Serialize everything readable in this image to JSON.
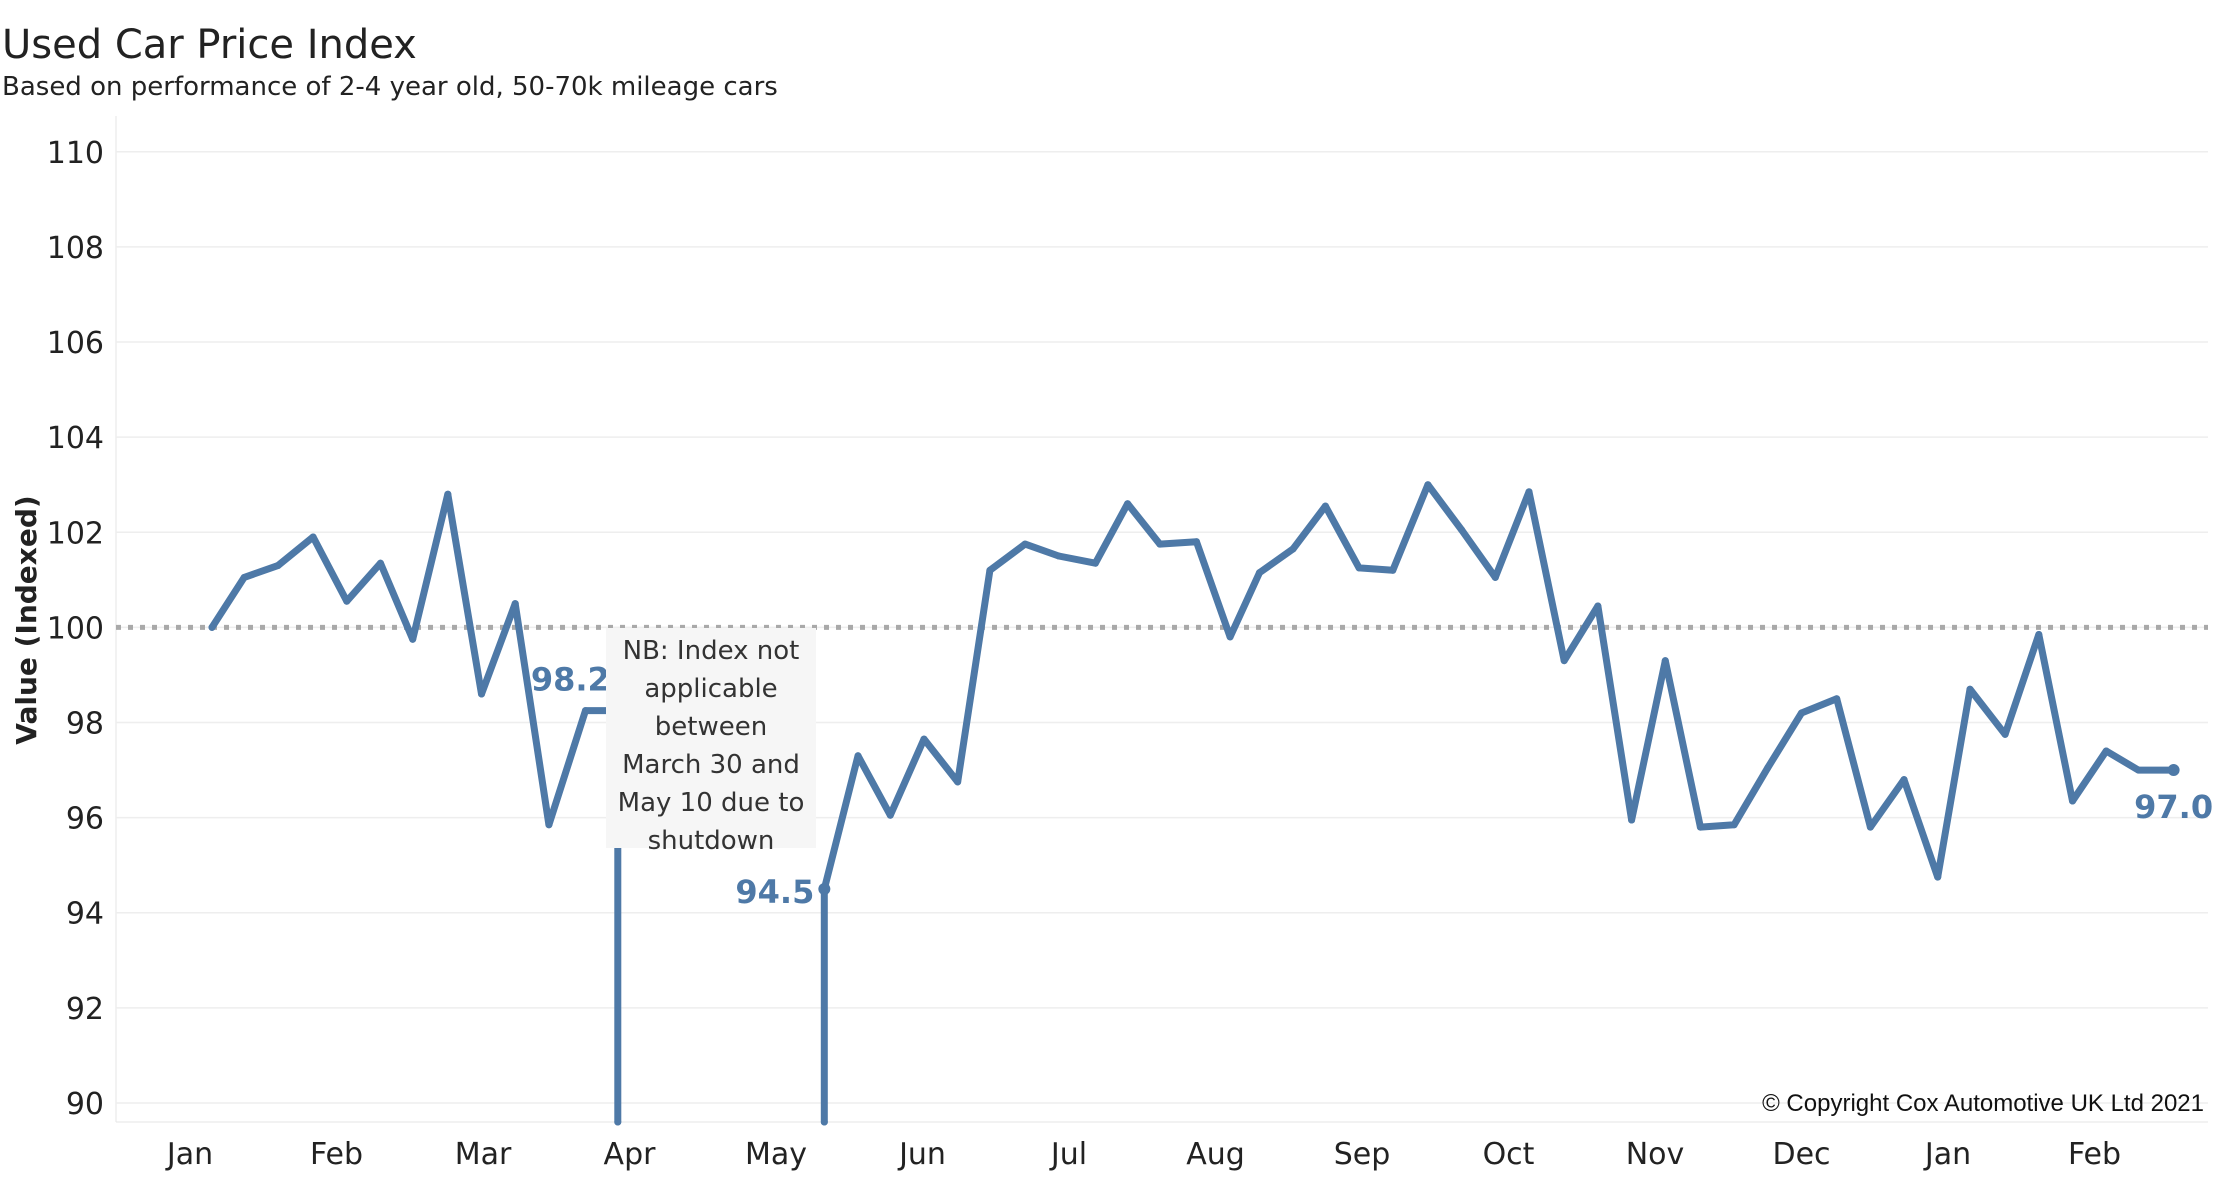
{
  "chart_data": {
    "type": "line",
    "title": "Used Car Price Index",
    "subtitle": "Based on performance of 2-4 year old, 50-70k mileage cars",
    "ylabel": "Value (Indexed)",
    "xlabel": "",
    "ylim": [
      89.6,
      110.5
    ],
    "yticks": [
      90,
      92,
      94,
      96,
      98,
      100,
      102,
      104,
      106,
      108,
      110
    ],
    "xticks": [
      "Jan",
      "Feb",
      "Mar",
      "Apr",
      "May",
      "Jun",
      "Jul",
      "Aug",
      "Sep",
      "Oct",
      "Nov",
      "Dec",
      "Jan",
      "Feb"
    ],
    "reference_line": {
      "value": 100,
      "style": "dotted"
    },
    "grid": "horizontal",
    "series": [
      {
        "color": "#4e79a7",
        "segments": [
          {
            "x": [
              0.15,
              0.37,
              0.6,
              0.84,
              1.07,
              1.3,
              1.52,
              1.76,
              1.99,
              2.22,
              2.45,
              2.7,
              2.92,
              2.92
            ],
            "y": [
              100.0,
              101.05,
              101.3,
              101.9,
              100.55,
              101.35,
              99.75,
              102.8,
              98.6,
              100.5,
              95.85,
              98.25,
              98.25,
              89.6
            ]
          },
          {
            "x": [
              4.33,
              4.33,
              4.56,
              4.78,
              5.01,
              5.24,
              5.46,
              5.7,
              5.93,
              6.18,
              6.4,
              6.62,
              6.87,
              7.1,
              7.3,
              7.53,
              7.75,
              7.98,
              8.21,
              8.45,
              8.68,
              8.91,
              9.14,
              9.38,
              9.61,
              9.84,
              10.07,
              10.31,
              10.54,
              10.77,
              11.0,
              11.24,
              11.47,
              11.7,
              11.93,
              12.15,
              12.39,
              12.62,
              12.85,
              13.08,
              13.3,
              13.54
            ],
            "y": [
              89.6,
              94.5,
              97.3,
              96.05,
              97.65,
              96.75,
              101.2,
              101.75,
              101.5,
              101.35,
              102.6,
              101.75,
              101.8,
              99.8,
              101.15,
              101.65,
              102.55,
              101.25,
              101.2,
              103.0,
              102.05,
              101.05,
              102.85,
              99.3,
              100.45,
              95.95,
              99.3,
              95.8,
              95.85,
              97.05,
              98.2,
              98.5,
              95.8,
              96.8,
              94.75,
              98.7,
              97.75,
              99.85,
              96.35,
              97.4,
              97.0,
              97.0
            ]
          }
        ]
      }
    ],
    "annotations": [
      {
        "label": "98.2",
        "x": 2.92,
        "y": 98.25
      },
      {
        "label": "94.5",
        "x": 4.33,
        "y": 94.5
      },
      {
        "label": "97.0",
        "x": 13.54,
        "y": 97.0
      }
    ],
    "note": "NB: Index not\napplicable\nbetween\nMarch 30 and\nMay 10 due to\nshutdown",
    "copyright": "© Copyright Cox Automotive UK Ltd 2021"
  }
}
